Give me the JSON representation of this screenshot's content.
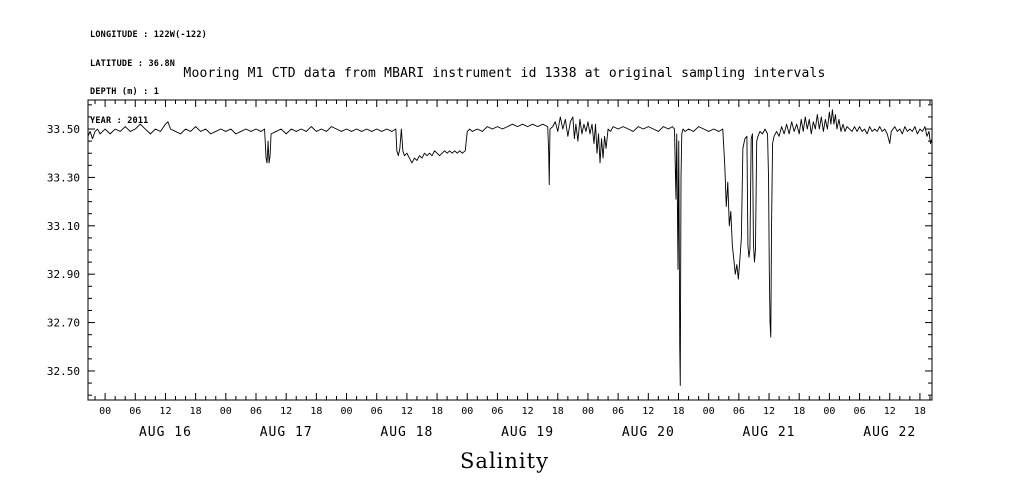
{
  "meta": {
    "longitude": "LONGITUDE : 122W(-122)",
    "latitude": "LATITUDE : 36.8N",
    "depth": "DEPTH (m) : 1",
    "year": "YEAR : 2011"
  },
  "title": "Mooring M1 CTD data from MBARI instrument id 1338 at original sampling intervals",
  "bottom_label": "Salinity",
  "chart_data": {
    "type": "line",
    "title": "Mooring M1 CTD data from MBARI instrument id 1338 at original sampling intervals",
    "xlabel": "Salinity",
    "ylabel": "",
    "line_color": "#000000",
    "background": "#ffffff",
    "grid": false,
    "legend": "none",
    "xlim": [
      -3.4,
      164.4
    ],
    "ylim": [
      32.38,
      33.62
    ],
    "yticks": [
      33.5,
      33.3,
      33.1,
      32.9,
      32.7,
      32.5
    ],
    "ytick_labels": [
      "33.50",
      "33.30",
      "33.10",
      "32.90",
      "32.70",
      "32.50"
    ],
    "y_minor_step": 0.05,
    "hour_offsets": [
      0,
      6,
      12,
      18
    ],
    "hour_tick_labels": [
      "00",
      "06",
      "12",
      "18"
    ],
    "x_minor_step_h": 2,
    "days": [
      {
        "label": "AUG 16",
        "start_h": 0
      },
      {
        "label": "AUG 17",
        "start_h": 24
      },
      {
        "label": "AUG 18",
        "start_h": 48
      },
      {
        "label": "AUG 19",
        "start_h": 72
      },
      {
        "label": "AUG 20",
        "start_h": 96
      },
      {
        "label": "AUG 21",
        "start_h": 120
      },
      {
        "label": "AUG 22",
        "start_h": 144
      }
    ],
    "points": [
      [
        -3.4,
        33.47
      ],
      [
        -3,
        33.49
      ],
      [
        -2.5,
        33.46
      ],
      [
        -2,
        33.49
      ],
      [
        -1.5,
        33.5
      ],
      [
        -1,
        33.48
      ],
      [
        -0.5,
        33.49
      ],
      [
        0,
        33.5
      ],
      [
        1,
        33.48
      ],
      [
        2,
        33.5
      ],
      [
        3,
        33.49
      ],
      [
        4,
        33.51
      ],
      [
        5,
        33.49
      ],
      [
        6,
        33.5
      ],
      [
        7,
        33.52
      ],
      [
        8,
        33.5
      ],
      [
        9,
        33.48
      ],
      [
        10,
        33.5
      ],
      [
        11,
        33.49
      ],
      [
        12,
        33.52
      ],
      [
        12.5,
        33.53
      ],
      [
        13,
        33.5
      ],
      [
        14,
        33.49
      ],
      [
        15,
        33.48
      ],
      [
        16,
        33.5
      ],
      [
        17,
        33.49
      ],
      [
        18,
        33.51
      ],
      [
        19,
        33.49
      ],
      [
        20,
        33.5
      ],
      [
        21,
        33.48
      ],
      [
        22,
        33.49
      ],
      [
        23,
        33.5
      ],
      [
        24,
        33.49
      ],
      [
        25,
        33.5
      ],
      [
        26,
        33.48
      ],
      [
        27,
        33.49
      ],
      [
        28,
        33.5
      ],
      [
        29,
        33.49
      ],
      [
        30,
        33.5
      ],
      [
        31,
        33.49
      ],
      [
        31.7,
        33.5
      ],
      [
        32,
        33.38
      ],
      [
        32.2,
        33.36
      ],
      [
        32.4,
        33.45
      ],
      [
        32.6,
        33.36
      ],
      [
        32.8,
        33.39
      ],
      [
        33,
        33.48
      ],
      [
        34,
        33.49
      ],
      [
        35,
        33.5
      ],
      [
        36,
        33.48
      ],
      [
        37,
        33.5
      ],
      [
        38,
        33.49
      ],
      [
        39,
        33.5
      ],
      [
        40,
        33.49
      ],
      [
        41,
        33.51
      ],
      [
        42,
        33.49
      ],
      [
        43,
        33.5
      ],
      [
        44,
        33.49
      ],
      [
        45,
        33.51
      ],
      [
        46,
        33.5
      ],
      [
        47,
        33.49
      ],
      [
        48,
        33.5
      ],
      [
        49,
        33.49
      ],
      [
        50,
        33.5
      ],
      [
        51,
        33.49
      ],
      [
        52,
        33.5
      ],
      [
        53,
        33.49
      ],
      [
        54,
        33.5
      ],
      [
        55,
        33.49
      ],
      [
        56,
        33.5
      ],
      [
        57,
        33.49
      ],
      [
        57.8,
        33.5
      ],
      [
        58,
        33.41
      ],
      [
        58.3,
        33.39
      ],
      [
        58.6,
        33.42
      ],
      [
        58.9,
        33.5
      ],
      [
        59.2,
        33.41
      ],
      [
        59.5,
        33.39
      ],
      [
        60,
        33.4
      ],
      [
        60.5,
        33.38
      ],
      [
        61,
        33.36
      ],
      [
        61.5,
        33.38
      ],
      [
        62,
        33.37
      ],
      [
        62.5,
        33.39
      ],
      [
        63,
        33.38
      ],
      [
        63.5,
        33.4
      ],
      [
        64,
        33.39
      ],
      [
        64.5,
        33.4
      ],
      [
        65,
        33.39
      ],
      [
        65.5,
        33.41
      ],
      [
        66,
        33.4
      ],
      [
        66.5,
        33.39
      ],
      [
        67,
        33.4
      ],
      [
        67.5,
        33.41
      ],
      [
        68,
        33.4
      ],
      [
        68.5,
        33.41
      ],
      [
        69,
        33.4
      ],
      [
        69.5,
        33.41
      ],
      [
        70,
        33.4
      ],
      [
        70.5,
        33.41
      ],
      [
        71,
        33.4
      ],
      [
        71.6,
        33.41
      ],
      [
        72,
        33.49
      ],
      [
        72.5,
        33.5
      ],
      [
        73,
        33.49
      ],
      [
        74,
        33.5
      ],
      [
        75,
        33.49
      ],
      [
        76,
        33.51
      ],
      [
        77,
        33.5
      ],
      [
        78,
        33.51
      ],
      [
        79,
        33.5
      ],
      [
        80,
        33.51
      ],
      [
        81,
        33.52
      ],
      [
        82,
        33.51
      ],
      [
        83,
        33.52
      ],
      [
        84,
        33.51
      ],
      [
        85,
        33.52
      ],
      [
        86,
        33.51
      ],
      [
        87,
        33.52
      ],
      [
        88,
        33.51
      ],
      [
        88.2,
        33.4
      ],
      [
        88.3,
        33.27
      ],
      [
        88.45,
        33.5
      ],
      [
        89,
        33.51
      ],
      [
        89.5,
        33.53
      ],
      [
        90,
        33.49
      ],
      [
        90.5,
        33.55
      ],
      [
        91,
        33.5
      ],
      [
        91.5,
        33.54
      ],
      [
        92,
        33.47
      ],
      [
        92.5,
        33.53
      ],
      [
        93,
        33.55
      ],
      [
        93.3,
        33.46
      ],
      [
        93.6,
        33.52
      ],
      [
        94,
        33.45
      ],
      [
        94.4,
        33.54
      ],
      [
        94.8,
        33.48
      ],
      [
        95.2,
        33.52
      ],
      [
        95.6,
        33.49
      ],
      [
        96,
        33.53
      ],
      [
        96.4,
        33.48
      ],
      [
        96.8,
        33.52
      ],
      [
        97.2,
        33.44
      ],
      [
        97.5,
        33.52
      ],
      [
        97.8,
        33.4
      ],
      [
        98.1,
        33.48
      ],
      [
        98.4,
        33.36
      ],
      [
        98.7,
        33.46
      ],
      [
        99,
        33.38
      ],
      [
        99.3,
        33.47
      ],
      [
        99.6,
        33.42
      ],
      [
        100,
        33.5
      ],
      [
        100.5,
        33.49
      ],
      [
        101,
        33.51
      ],
      [
        102,
        33.5
      ],
      [
        103,
        33.51
      ],
      [
        104,
        33.5
      ],
      [
        105,
        33.49
      ],
      [
        106,
        33.51
      ],
      [
        107,
        33.5
      ],
      [
        108,
        33.51
      ],
      [
        109,
        33.5
      ],
      [
        110,
        33.49
      ],
      [
        111,
        33.51
      ],
      [
        112,
        33.5
      ],
      [
        112.8,
        33.51
      ],
      [
        113.2,
        33.5
      ],
      [
        113.5,
        33.21
      ],
      [
        113.65,
        33.48
      ],
      [
        113.9,
        32.92
      ],
      [
        114.05,
        33.45
      ],
      [
        114.25,
        32.6
      ],
      [
        114.35,
        32.44
      ],
      [
        114.5,
        33.3
      ],
      [
        114.65,
        33.48
      ],
      [
        114.9,
        33.5
      ],
      [
        115.3,
        33.49
      ],
      [
        116,
        33.5
      ],
      [
        117,
        33.49
      ],
      [
        118,
        33.51
      ],
      [
        119,
        33.5
      ],
      [
        120,
        33.49
      ],
      [
        121,
        33.5
      ],
      [
        122,
        33.49
      ],
      [
        122.8,
        33.5
      ],
      [
        123.2,
        33.35
      ],
      [
        123.5,
        33.18
      ],
      [
        123.8,
        33.28
      ],
      [
        124.1,
        33.1
      ],
      [
        124.4,
        33.16
      ],
      [
        124.7,
        33.02
      ],
      [
        125,
        32.96
      ],
      [
        125.3,
        32.9
      ],
      [
        125.6,
        32.94
      ],
      [
        125.9,
        32.88
      ],
      [
        126.2,
        32.96
      ],
      [
        126.5,
        33.05
      ],
      [
        126.8,
        33.42
      ],
      [
        127.2,
        33.46
      ],
      [
        127.6,
        33.47
      ],
      [
        127.8,
        33.02
      ],
      [
        128,
        32.97
      ],
      [
        128.2,
        33
      ],
      [
        128.45,
        33.46
      ],
      [
        128.7,
        33.48
      ],
      [
        128.9,
        33.03
      ],
      [
        129.1,
        32.95
      ],
      [
        129.3,
        33
      ],
      [
        129.55,
        33.45
      ],
      [
        129.8,
        33.47
      ],
      [
        130.2,
        33.49
      ],
      [
        130.7,
        33.48
      ],
      [
        131.2,
        33.5
      ],
      [
        131.7,
        33.48
      ],
      [
        131.9,
        33.3
      ],
      [
        132.05,
        32.92
      ],
      [
        132.2,
        32.7
      ],
      [
        132.35,
        32.64
      ],
      [
        132.5,
        33.1
      ],
      [
        132.7,
        33.44
      ],
      [
        133,
        33.47
      ],
      [
        133.5,
        33.49
      ],
      [
        134,
        33.47
      ],
      [
        134.5,
        33.51
      ],
      [
        135,
        33.48
      ],
      [
        135.5,
        33.52
      ],
      [
        136,
        33.48
      ],
      [
        136.5,
        33.53
      ],
      [
        137,
        33.49
      ],
      [
        137.5,
        33.52
      ],
      [
        138,
        33.48
      ],
      [
        138.4,
        33.54
      ],
      [
        138.8,
        33.49
      ],
      [
        139.2,
        33.55
      ],
      [
        139.6,
        33.5
      ],
      [
        140,
        33.54
      ],
      [
        140.4,
        33.48
      ],
      [
        140.8,
        33.53
      ],
      [
        141.2,
        33.5
      ],
      [
        141.6,
        33.56
      ],
      [
        142,
        33.5
      ],
      [
        142.4,
        33.55
      ],
      [
        142.8,
        33.49
      ],
      [
        143.2,
        33.54
      ],
      [
        143.6,
        33.5
      ],
      [
        144,
        33.57
      ],
      [
        144.3,
        33.52
      ],
      [
        144.6,
        33.58
      ],
      [
        144.9,
        33.52
      ],
      [
        145.2,
        33.56
      ],
      [
        145.5,
        33.5
      ],
      [
        145.9,
        33.54
      ],
      [
        146.3,
        33.49
      ],
      [
        146.7,
        33.52
      ],
      [
        147.1,
        33.49
      ],
      [
        147.5,
        33.51
      ],
      [
        148,
        33.5
      ],
      [
        148.5,
        33.49
      ],
      [
        149,
        33.51
      ],
      [
        149.5,
        33.49
      ],
      [
        150,
        33.51
      ],
      [
        150.5,
        33.49
      ],
      [
        151,
        33.5
      ],
      [
        151.5,
        33.48
      ],
      [
        152,
        33.51
      ],
      [
        152.5,
        33.49
      ],
      [
        153,
        33.5
      ],
      [
        153.5,
        33.49
      ],
      [
        154,
        33.51
      ],
      [
        154.5,
        33.49
      ],
      [
        155,
        33.5
      ],
      [
        155.5,
        33.48
      ],
      [
        156,
        33.44
      ],
      [
        156.3,
        33.49
      ],
      [
        157,
        33.51
      ],
      [
        157.5,
        33.49
      ],
      [
        158,
        33.5
      ],
      [
        158.5,
        33.48
      ],
      [
        159,
        33.51
      ],
      [
        159.5,
        33.49
      ],
      [
        160,
        33.5
      ],
      [
        160.5,
        33.49
      ],
      [
        161,
        33.51
      ],
      [
        161.5,
        33.48
      ],
      [
        162,
        33.5
      ],
      [
        162.5,
        33.49
      ],
      [
        163,
        33.51
      ],
      [
        163.4,
        33.47
      ],
      [
        163.8,
        33.49
      ],
      [
        164.1,
        33.44
      ],
      [
        164.4,
        33.46
      ]
    ]
  }
}
